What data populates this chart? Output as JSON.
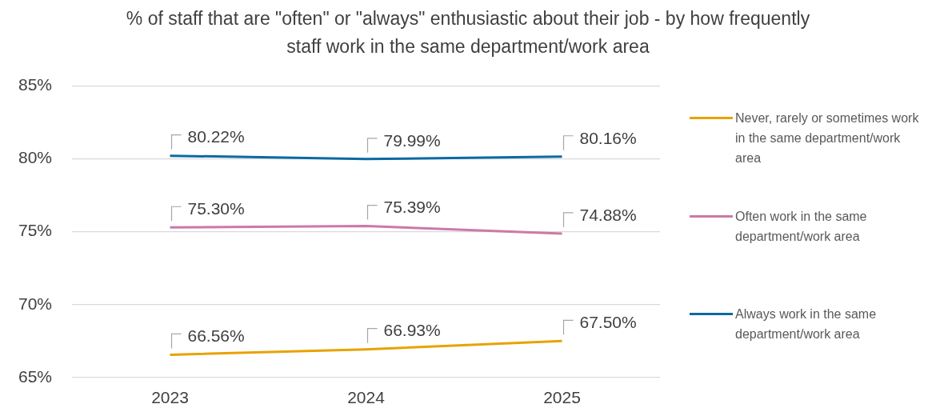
{
  "chart_data": {
    "type": "line",
    "title": "% of staff that are \"often\" or \"always\" enthusiastic about their job - by how frequently staff work in the same department/work area",
    "categories": [
      "2023",
      "2024",
      "2025"
    ],
    "series": [
      {
        "name": "Never, rarely or sometimes work in the same department/work area",
        "color": "#e8a202",
        "values": [
          66.56,
          66.93,
          67.5
        ],
        "value_labels": [
          "66.56%",
          "66.93%",
          "67.50%"
        ]
      },
      {
        "name": "Often work in the same department/work area",
        "color": "#cc79a7",
        "values": [
          75.3,
          75.39,
          74.88
        ],
        "value_labels": [
          "75.30%",
          "75.39%",
          "74.88%"
        ]
      },
      {
        "name": "Always work in the same department/work area",
        "color": "#0b6aa2",
        "values": [
          80.22,
          79.99,
          80.16
        ],
        "value_labels": [
          "80.22%",
          "79.99%",
          "80.16%"
        ]
      }
    ],
    "ylim": [
      65,
      85
    ],
    "yticks": [
      {
        "value": 65,
        "label": "65%"
      },
      {
        "value": 70,
        "label": "70%"
      },
      {
        "value": 75,
        "label": "75%"
      },
      {
        "value": 80,
        "label": "80%"
      },
      {
        "value": 85,
        "label": "85%"
      }
    ],
    "grid": "y",
    "legend": "right",
    "marker": "none",
    "line_style": "solid"
  }
}
